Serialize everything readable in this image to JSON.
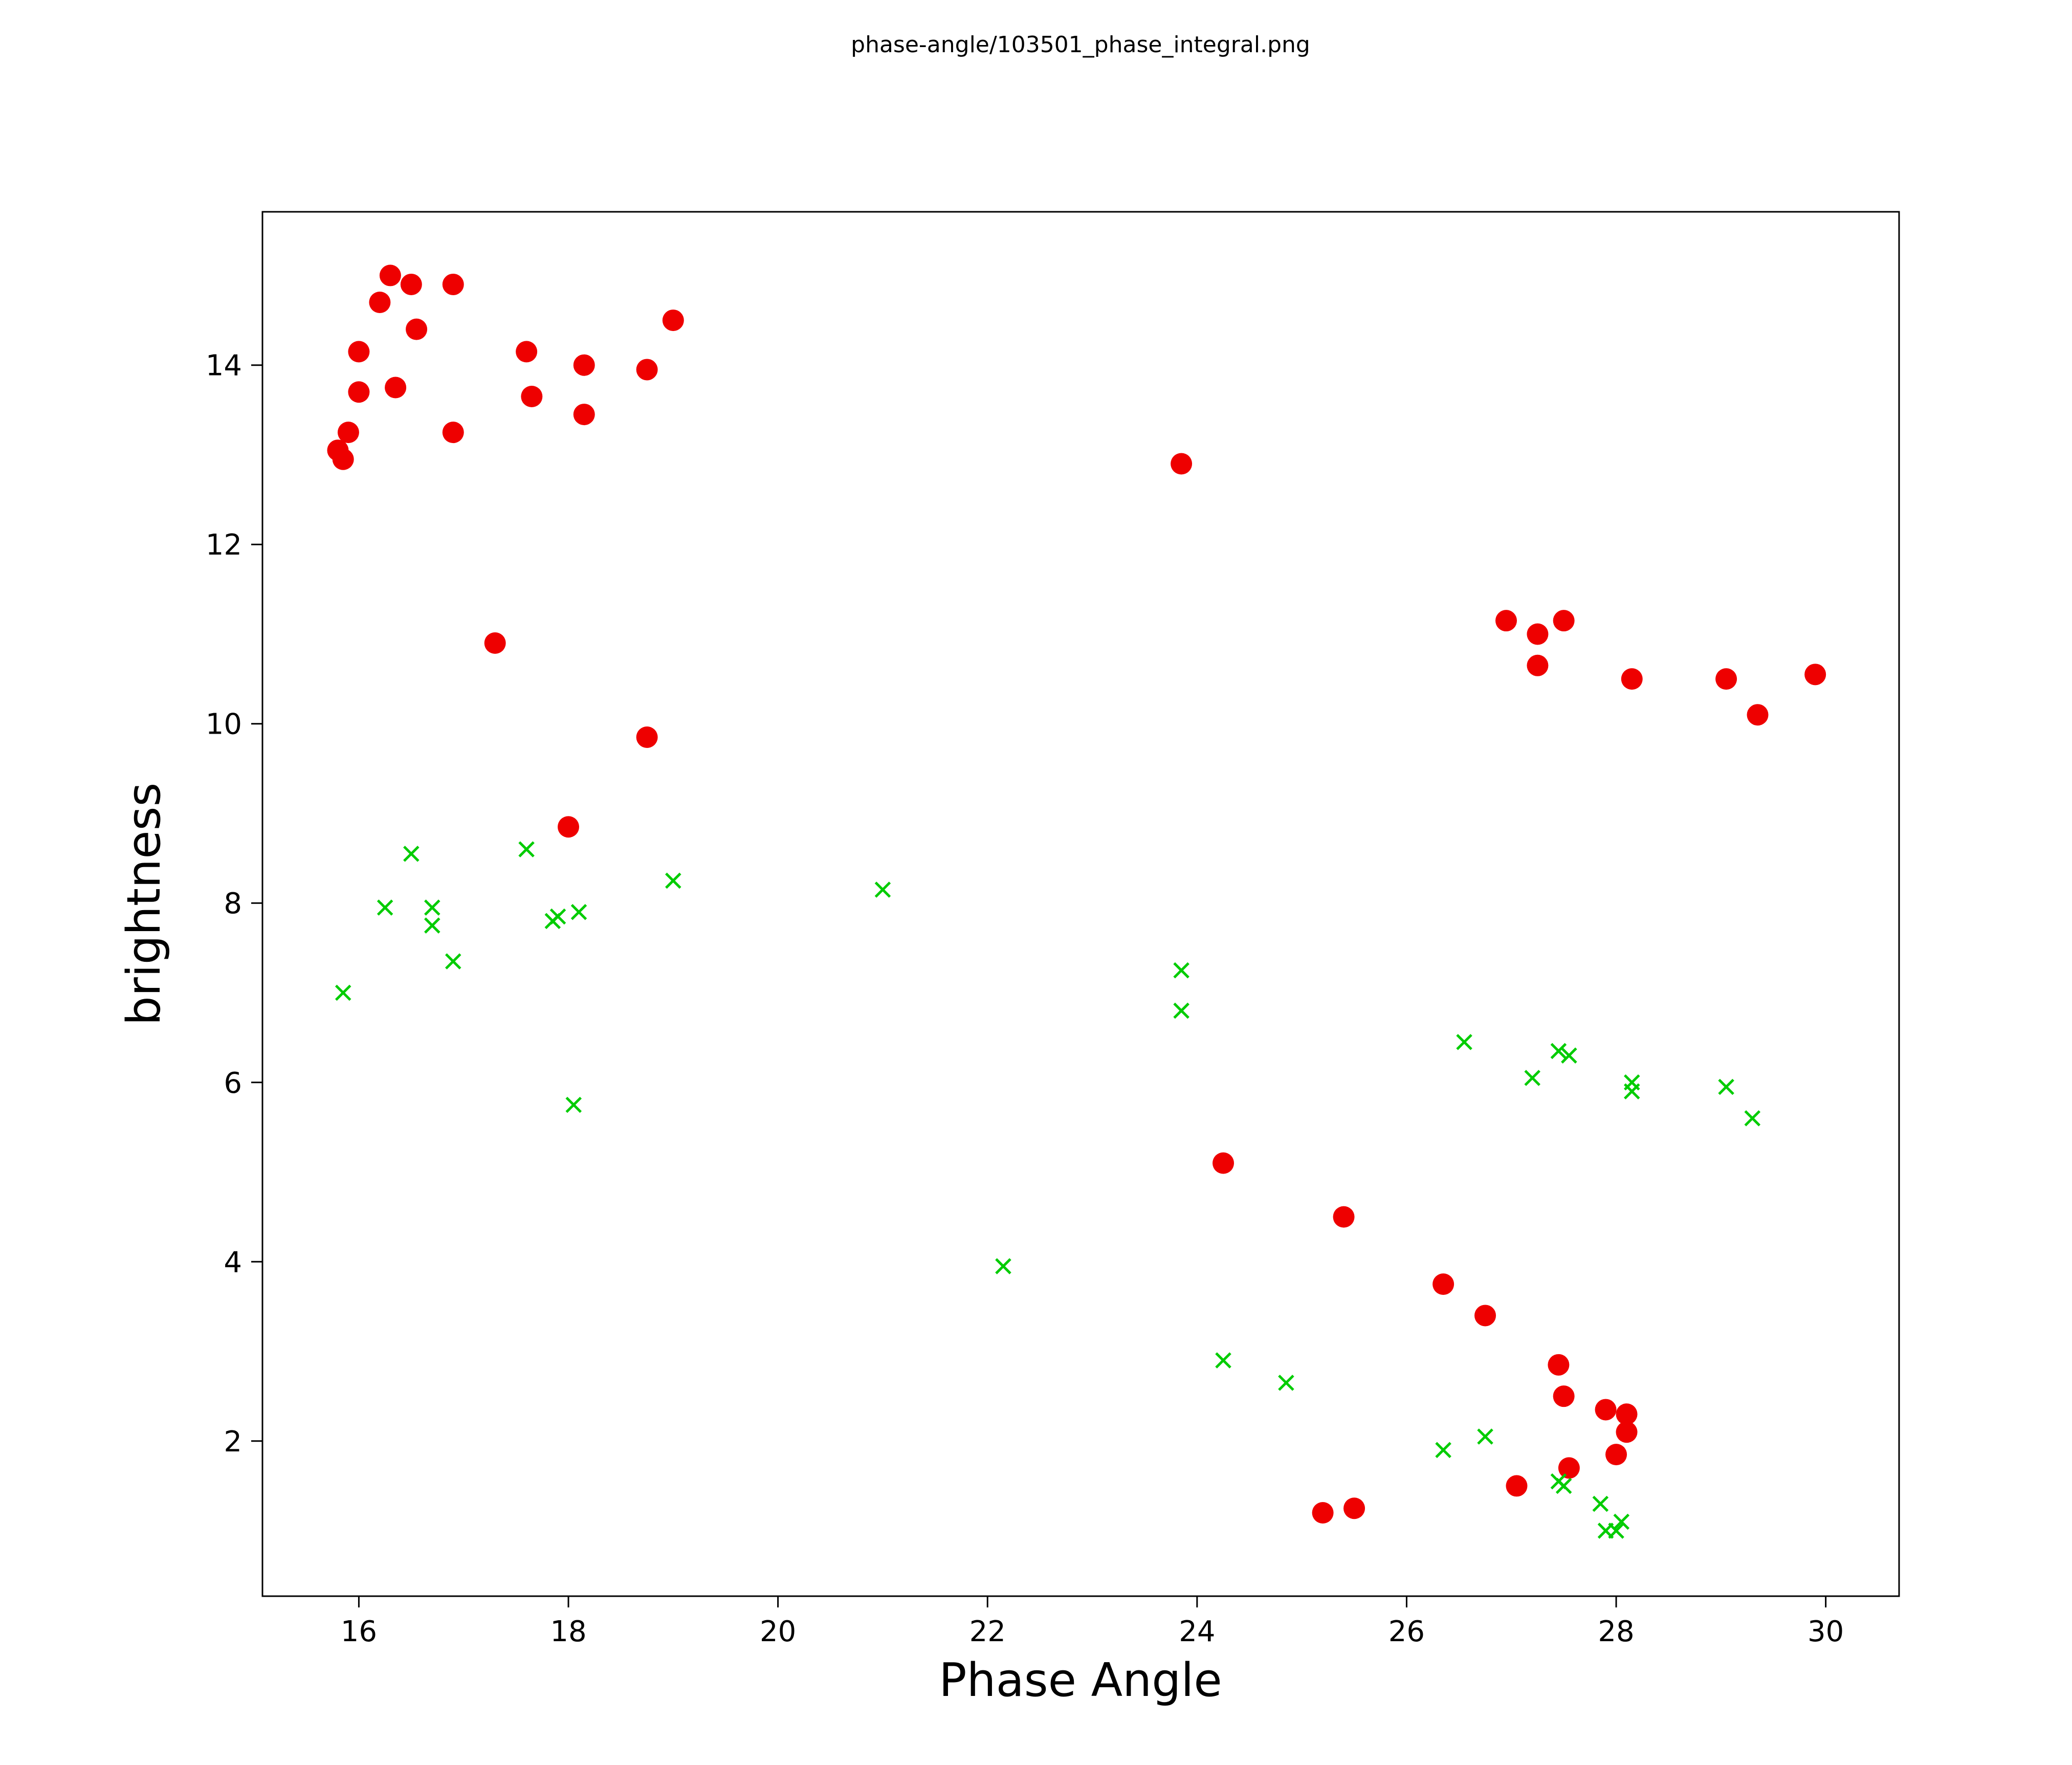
{
  "figure": {
    "background_color": "#ffffff"
  },
  "chart_data": {
    "type": "scatter",
    "title": "phase-angle/103501_phase_integral.png",
    "xlabel": "Phase Angle",
    "ylabel": "brightness",
    "xlim": [
      15.08,
      30.7
    ],
    "ylim": [
      0.27,
      15.71
    ],
    "xticks": [
      16,
      18,
      20,
      22,
      24,
      26,
      28,
      30
    ],
    "yticks": [
      2,
      4,
      6,
      8,
      10,
      12,
      14
    ],
    "grid": false,
    "legend": false,
    "series": [
      {
        "name": "red-circles",
        "marker": "circle",
        "color": "#ee0000",
        "size": 21,
        "points": [
          [
            16.3,
            15.0
          ],
          [
            16.2,
            14.7
          ],
          [
            16.5,
            14.9
          ],
          [
            16.9,
            14.9
          ],
          [
            16.55,
            14.4
          ],
          [
            16.0,
            14.15
          ],
          [
            19.0,
            14.5
          ],
          [
            17.6,
            14.15
          ],
          [
            18.15,
            14.0
          ],
          [
            18.75,
            13.95
          ],
          [
            16.0,
            13.7
          ],
          [
            16.35,
            13.75
          ],
          [
            17.65,
            13.65
          ],
          [
            18.15,
            13.45
          ],
          [
            15.9,
            13.25
          ],
          [
            16.9,
            13.25
          ],
          [
            15.8,
            13.05
          ],
          [
            15.85,
            12.95
          ],
          [
            23.85,
            12.9
          ],
          [
            17.3,
            10.9
          ],
          [
            26.95,
            11.15
          ],
          [
            27.25,
            11.0
          ],
          [
            27.5,
            11.15
          ],
          [
            27.25,
            10.65
          ],
          [
            28.15,
            10.5
          ],
          [
            29.05,
            10.5
          ],
          [
            29.35,
            10.1
          ],
          [
            29.9,
            10.55
          ],
          [
            18.75,
            9.85
          ],
          [
            18.0,
            8.85
          ],
          [
            24.25,
            5.1
          ],
          [
            25.4,
            4.5
          ],
          [
            26.35,
            3.75
          ],
          [
            26.75,
            3.4
          ],
          [
            27.45,
            2.85
          ],
          [
            27.5,
            2.5
          ],
          [
            27.9,
            2.35
          ],
          [
            28.1,
            2.3
          ],
          [
            28.1,
            2.1
          ],
          [
            28.0,
            1.85
          ],
          [
            27.55,
            1.7
          ],
          [
            27.05,
            1.5
          ],
          [
            25.2,
            1.2
          ],
          [
            25.5,
            1.25
          ]
        ]
      },
      {
        "name": "green-crosses",
        "marker": "x",
        "color": "#00cc00",
        "size": 14,
        "stroke_width": 5,
        "points": [
          [
            15.85,
            7.0
          ],
          [
            16.25,
            7.95
          ],
          [
            16.5,
            8.55
          ],
          [
            16.7,
            7.95
          ],
          [
            16.7,
            7.75
          ],
          [
            16.9,
            7.35
          ],
          [
            17.6,
            8.6
          ],
          [
            17.85,
            7.8
          ],
          [
            17.9,
            7.85
          ],
          [
            18.1,
            7.9
          ],
          [
            18.05,
            5.75
          ],
          [
            19.0,
            8.25
          ],
          [
            21.0,
            8.15
          ],
          [
            22.15,
            3.95
          ],
          [
            23.85,
            7.25
          ],
          [
            23.85,
            6.8
          ],
          [
            24.25,
            2.9
          ],
          [
            24.85,
            2.65
          ],
          [
            26.35,
            1.9
          ],
          [
            26.55,
            6.45
          ],
          [
            26.75,
            2.05
          ],
          [
            27.2,
            6.05
          ],
          [
            27.45,
            6.35
          ],
          [
            27.55,
            6.3
          ],
          [
            27.45,
            1.55
          ],
          [
            27.5,
            1.5
          ],
          [
            27.85,
            1.3
          ],
          [
            27.9,
            1.0
          ],
          [
            28.0,
            1.0
          ],
          [
            28.05,
            1.1
          ],
          [
            28.15,
            6.0
          ],
          [
            28.15,
            5.9
          ],
          [
            29.05,
            5.95
          ],
          [
            29.3,
            5.6
          ]
        ]
      }
    ]
  }
}
